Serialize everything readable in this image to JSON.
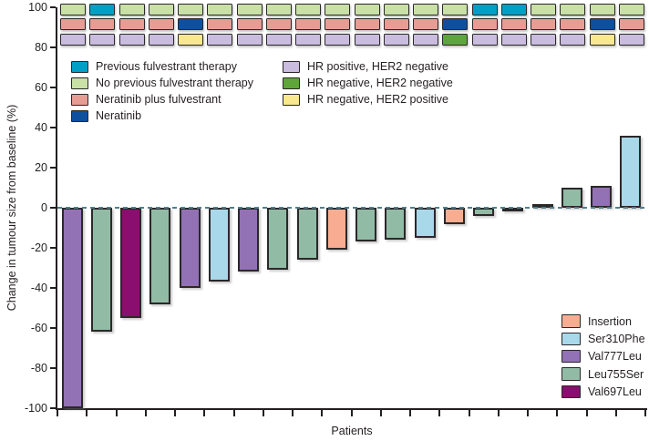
{
  "figure": {
    "y_ticks": [
      100,
      80,
      60,
      40,
      20,
      0,
      -20,
      -40,
      -60,
      -80,
      -100
    ]
  },
  "colors": {
    "previous_fulvestrant": "#00a0c6",
    "no_previous_fulvestrant": "#c9e0a6",
    "neratinib_plus_fulvestrant": "#e79d94",
    "neratinib": "#0f4fa0",
    "hr_positive_her2_negative": "#c9bcdf",
    "hr_negative_her2_negative": "#5ea63a",
    "hr_negative_her2_positive": "#fae88e",
    "insertion": "#f8ad92",
    "ser310phe": "#a8d8ea",
    "val777leu": "#9271b4",
    "leu755ser": "#92bba5",
    "val697leu": "#8a0e70",
    "zero_line": "#4e808e",
    "axis": "#231f20"
  },
  "legend_therapy": [
    {
      "label": "Previous fulvestrant therapy",
      "color_key": "previous_fulvestrant"
    },
    {
      "label": "No previous fulvestrant therapy",
      "color_key": "no_previous_fulvestrant"
    },
    {
      "label": "Neratinib plus fulvestrant",
      "color_key": "neratinib_plus_fulvestrant"
    },
    {
      "label": "Neratinib",
      "color_key": "neratinib"
    }
  ],
  "legend_receptor": [
    {
      "label": "HR positive, HER2 negative",
      "color_key": "hr_positive_her2_negative"
    },
    {
      "label": "HR negative, HER2 negative",
      "color_key": "hr_negative_her2_negative"
    },
    {
      "label": "HR negative, HER2 positive",
      "color_key": "hr_negative_her2_positive"
    }
  ],
  "legend_mutation": [
    {
      "label": "Insertion",
      "color_key": "insertion"
    },
    {
      "label": "Ser310Phe",
      "color_key": "ser310phe"
    },
    {
      "label": "Val777Leu",
      "color_key": "val777leu"
    },
    {
      "label": "Leu755Ser",
      "color_key": "leu755ser"
    },
    {
      "label": "Val697Leu",
      "color_key": "val697leu"
    }
  ],
  "chart_data": {
    "type": "bar",
    "title": "",
    "xlabel": "Patients",
    "ylabel": "Change in tumour size from baseline (%)",
    "ylim": [
      -100,
      100
    ],
    "grid": false,
    "zero_reference_line": "dashed",
    "patients": [
      {
        "value": -100,
        "mutation": "val777leu",
        "therapy_history": "no_previous_fulvestrant",
        "treatment": "neratinib_plus_fulvestrant",
        "receptor_status": "hr_positive_her2_negative"
      },
      {
        "value": -62,
        "mutation": "leu755ser",
        "therapy_history": "previous_fulvestrant",
        "treatment": "neratinib_plus_fulvestrant",
        "receptor_status": "hr_positive_her2_negative"
      },
      {
        "value": -55,
        "mutation": "val697leu",
        "therapy_history": "no_previous_fulvestrant",
        "treatment": "neratinib_plus_fulvestrant",
        "receptor_status": "hr_positive_her2_negative"
      },
      {
        "value": -48,
        "mutation": "leu755ser",
        "therapy_history": "no_previous_fulvestrant",
        "treatment": "neratinib_plus_fulvestrant",
        "receptor_status": "hr_positive_her2_negative"
      },
      {
        "value": -40,
        "mutation": "val777leu",
        "therapy_history": "no_previous_fulvestrant",
        "treatment": "neratinib",
        "receptor_status": "hr_negative_her2_positive"
      },
      {
        "value": -37,
        "mutation": "ser310phe",
        "therapy_history": "no_previous_fulvestrant",
        "treatment": "neratinib_plus_fulvestrant",
        "receptor_status": "hr_positive_her2_negative"
      },
      {
        "value": -32,
        "mutation": "val777leu",
        "therapy_history": "no_previous_fulvestrant",
        "treatment": "neratinib_plus_fulvestrant",
        "receptor_status": "hr_positive_her2_negative"
      },
      {
        "value": -31,
        "mutation": "leu755ser",
        "therapy_history": "no_previous_fulvestrant",
        "treatment": "neratinib_plus_fulvestrant",
        "receptor_status": "hr_positive_her2_negative"
      },
      {
        "value": -26,
        "mutation": "leu755ser",
        "therapy_history": "no_previous_fulvestrant",
        "treatment": "neratinib_plus_fulvestrant",
        "receptor_status": "hr_positive_her2_negative"
      },
      {
        "value": -21,
        "mutation": "insertion",
        "therapy_history": "no_previous_fulvestrant",
        "treatment": "neratinib_plus_fulvestrant",
        "receptor_status": "hr_positive_her2_negative"
      },
      {
        "value": -17,
        "mutation": "leu755ser",
        "therapy_history": "no_previous_fulvestrant",
        "treatment": "neratinib_plus_fulvestrant",
        "receptor_status": "hr_positive_her2_negative"
      },
      {
        "value": -16,
        "mutation": "leu755ser",
        "therapy_history": "no_previous_fulvestrant",
        "treatment": "neratinib_plus_fulvestrant",
        "receptor_status": "hr_positive_her2_negative"
      },
      {
        "value": -15,
        "mutation": "ser310phe",
        "therapy_history": "no_previous_fulvestrant",
        "treatment": "neratinib_plus_fulvestrant",
        "receptor_status": "hr_positive_her2_negative"
      },
      {
        "value": -8,
        "mutation": "insertion",
        "therapy_history": "no_previous_fulvestrant",
        "treatment": "neratinib",
        "receptor_status": "hr_negative_her2_negative"
      },
      {
        "value": -4,
        "mutation": "leu755ser",
        "therapy_history": "previous_fulvestrant",
        "treatment": "neratinib_plus_fulvestrant",
        "receptor_status": "hr_positive_her2_negative"
      },
      {
        "value": -2,
        "mutation": "leu755ser",
        "therapy_history": "previous_fulvestrant",
        "treatment": "neratinib_plus_fulvestrant",
        "receptor_status": "hr_positive_her2_negative"
      },
      {
        "value": 2,
        "mutation": "insertion",
        "therapy_history": "no_previous_fulvestrant",
        "treatment": "neratinib_plus_fulvestrant",
        "receptor_status": "hr_positive_her2_negative"
      },
      {
        "value": 10,
        "mutation": "leu755ser",
        "therapy_history": "no_previous_fulvestrant",
        "treatment": "neratinib_plus_fulvestrant",
        "receptor_status": "hr_positive_her2_negative"
      },
      {
        "value": 11,
        "mutation": "val777leu",
        "therapy_history": "no_previous_fulvestrant",
        "treatment": "neratinib",
        "receptor_status": "hr_negative_her2_positive"
      },
      {
        "value": 36,
        "mutation": "ser310phe",
        "therapy_history": "no_previous_fulvestrant",
        "treatment": "neratinib_plus_fulvestrant",
        "receptor_status": "hr_positive_her2_negative"
      }
    ]
  }
}
